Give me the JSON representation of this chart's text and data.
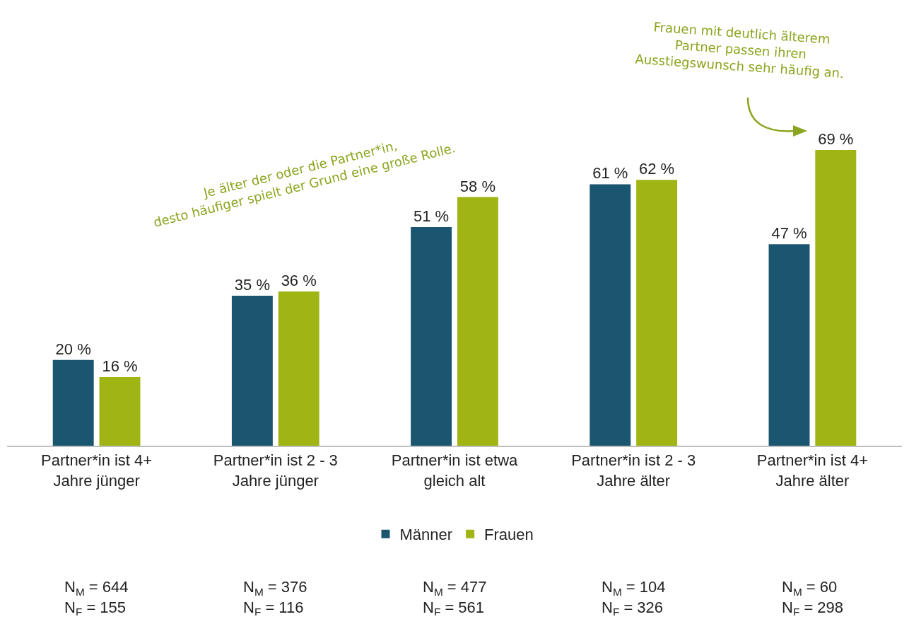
{
  "chart_data": {
    "type": "bar",
    "categories": [
      "Partner*in ist 4+\nJahre jünger",
      "Partner*in ist 2 - 3\nJahre jünger",
      "Partner*in ist etwa\ngleich alt",
      "Partner*in ist 2 - 3\nJahre älter",
      "Partner*in ist 4+\nJahre älter"
    ],
    "series": [
      {
        "name": "Männer",
        "color": "#1b5670",
        "values": [
          20,
          35,
          51,
          61,
          47
        ],
        "value_labels": [
          "20 %",
          "35 %",
          "51 %",
          "61 %",
          "47 %"
        ]
      },
      {
        "name": "Frauen",
        "color": "#a0b414",
        "values": [
          16,
          36,
          58,
          62,
          69
        ],
        "value_labels": [
          "16 %",
          "36 %",
          "58 %",
          "62 %",
          "69 %"
        ]
      }
    ],
    "legend": "bottom",
    "annotations": [
      "Je älter der oder die Partner*in,\ndesto häufiger spielt der Grund eine große Rolle.",
      "Frauen mit deutlich älterem\nPartner passen ihren\nAusstiegswunsch sehr häufig an.",
      "N$_{M}$ = 644\nN$_{F}$ = 155",
      "N$_{M}$ = 376\nN$_{F}$ = 116",
      "N$_{M}$ = 477\nN$_{F}$ = 561",
      "N$_{M}$ = 104\nN$_{F}$ = 326",
      "N$_{M}$ = 60\nN$_{F}$ = 298"
    ]
  }
}
